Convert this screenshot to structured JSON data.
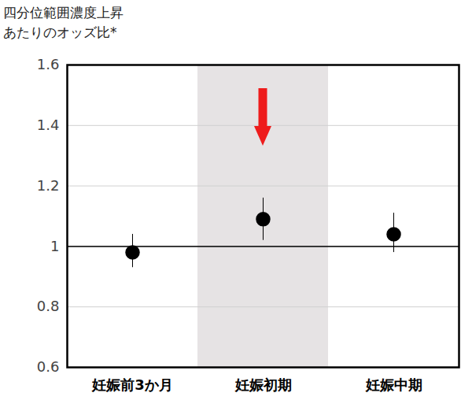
{
  "chart_data": {
    "type": "scatter",
    "title": "四分位範囲濃度上昇\nあたりのオッズ比*",
    "categories": [
      "妊娠前3か月",
      "妊娠初期",
      "妊娠中期"
    ],
    "values": [
      0.98,
      1.09,
      1.04
    ],
    "ci_lower": [
      0.93,
      1.02,
      0.98
    ],
    "ci_upper": [
      1.04,
      1.16,
      1.11
    ],
    "color": "#000000",
    "marker": "circle",
    "ylim": [
      0.6,
      1.6
    ],
    "yticks": [
      0.6,
      0.8,
      1,
      1.2,
      1.4,
      1.6
    ],
    "reference_line": 1,
    "grid": true
  }
}
